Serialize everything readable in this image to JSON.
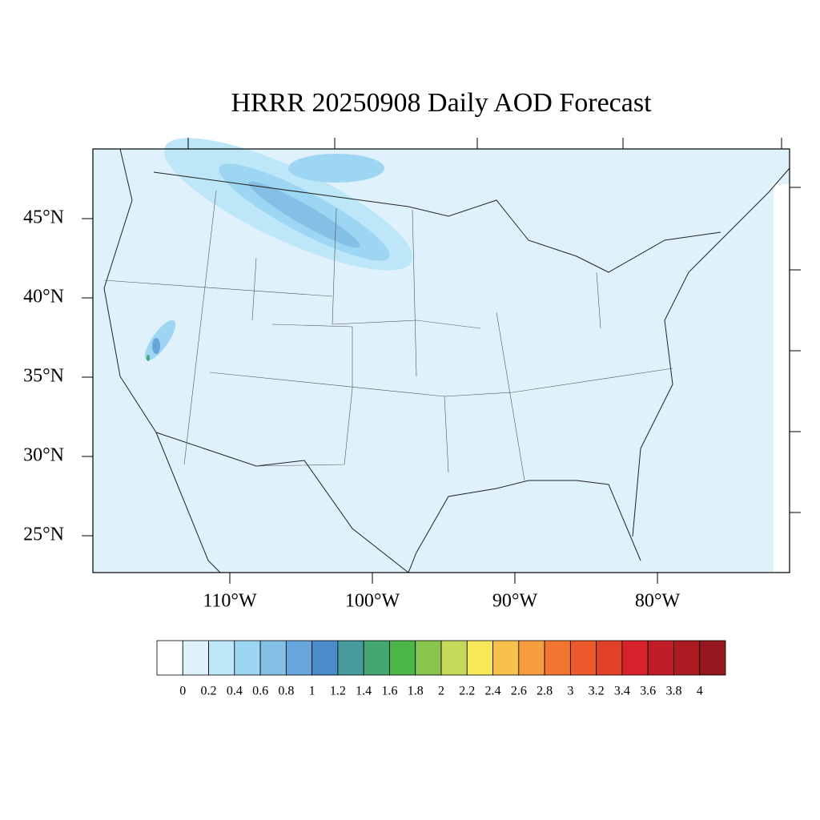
{
  "title": "HRRR 20250908 Daily AOD Forecast",
  "lat_labels": [
    {
      "value": 45,
      "label": "45°N"
    },
    {
      "value": 40,
      "label": "40°N"
    },
    {
      "value": 35,
      "label": "35°N"
    },
    {
      "value": 30,
      "label": "30°N"
    },
    {
      "value": 25,
      "label": "25°N"
    }
  ],
  "lon_labels": [
    {
      "value": -110,
      "label": "110°W"
    },
    {
      "value": -100,
      "label": "100°W"
    },
    {
      "value": -90,
      "label": "90°W"
    },
    {
      "value": -80,
      "label": "80°W"
    }
  ],
  "colorbar": {
    "levels": [
      0,
      0.2,
      0.4,
      0.6,
      0.8,
      1,
      1.2,
      1.4,
      1.6,
      1.8,
      2,
      2.2,
      2.4,
      2.6,
      2.8,
      3,
      3.2,
      3.4,
      3.6,
      3.8,
      4
    ],
    "colors": [
      "#ffffff",
      "#def2fb",
      "#bde6f8",
      "#9dd6f3",
      "#84bfe6",
      "#67a6dc",
      "#4a8cca",
      "#479b9c",
      "#46a671",
      "#4cb648",
      "#87c54e",
      "#c4d85a",
      "#f7e85a",
      "#f7c04a",
      "#f59d3f",
      "#f2762f",
      "#ec5a2c",
      "#e2412a",
      "#d6222b",
      "#c11d27",
      "#ad1b22",
      "#94181d"
    ]
  }
}
